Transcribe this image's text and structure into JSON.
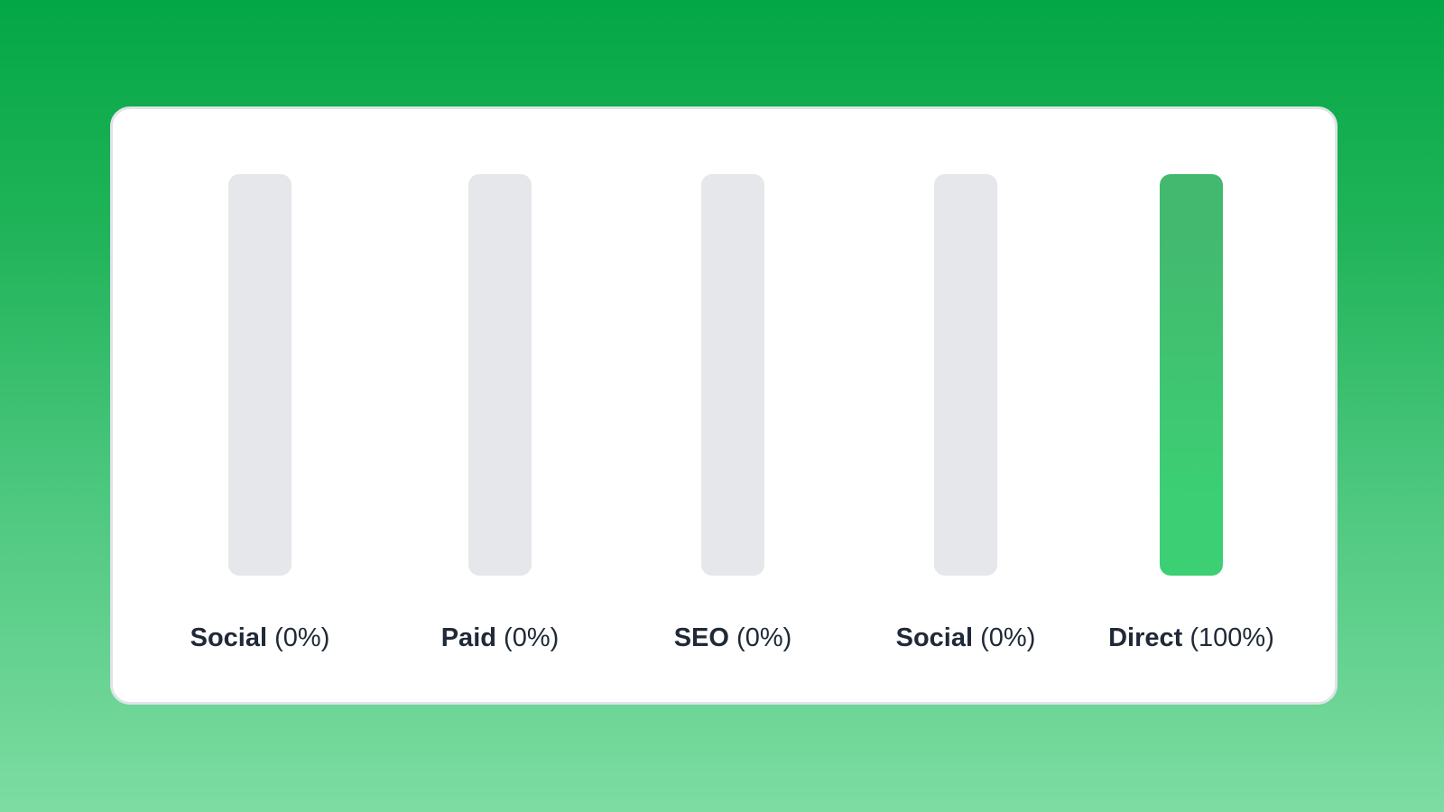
{
  "chart_data": {
    "type": "bar",
    "categories": [
      "Social",
      "Paid",
      "SEO",
      "Social",
      "Direct"
    ],
    "values": [
      0,
      0,
      0,
      0,
      100
    ],
    "value_labels": [
      "(0%)",
      "(0%)",
      "(0%)",
      "(0%)",
      "(100%)"
    ],
    "unit": "%",
    "ylim": [
      0,
      100
    ],
    "grid": false,
    "orientation": "vertical",
    "colors": {
      "track": "#e5e7eb",
      "fill_top": "#43b96f",
      "fill_bottom": "#3ccf73",
      "text": "#1f2937"
    }
  }
}
